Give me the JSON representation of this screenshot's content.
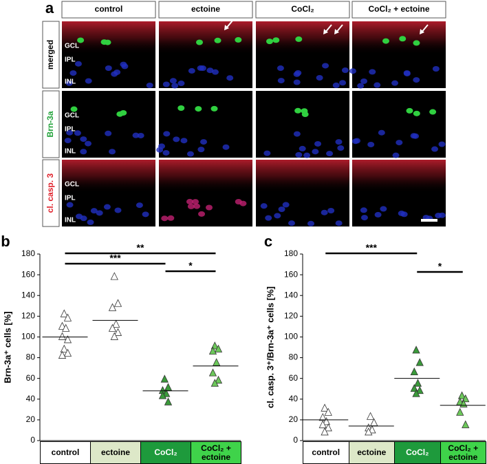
{
  "panel_a": {
    "label": "a",
    "columns": [
      "control",
      "ectoine",
      "CoCl₂",
      "CoCl₂ + ectoine"
    ],
    "rows": [
      {
        "label": "merged",
        "color": "#000000"
      },
      {
        "label": "Brn-3a",
        "color": "#22a33a"
      },
      {
        "label": "cl. casp. 3",
        "color": "#e0202a"
      }
    ],
    "layers": [
      "GCL",
      "IPL",
      "INL"
    ]
  },
  "chart_data": [
    {
      "type": "dot",
      "panel_label": "b",
      "y_label": "Brn-3a⁺ cells [%]",
      "categories": [
        "control",
        "ectoine",
        "CoCl₂",
        "CoCl₂ + ectoine"
      ],
      "values": [
        [
          122,
          118,
          110,
          108,
          100,
          97,
          88,
          84,
          82
        ],
        [
          158,
          132,
          128,
          112,
          108,
          104,
          100
        ],
        [
          59,
          51,
          48,
          45,
          43,
          37
        ],
        [
          91,
          88,
          86,
          75,
          65,
          58,
          55
        ]
      ],
      "means": [
        100,
        116,
        48,
        72
      ],
      "marker_colors": [
        "#ffffff",
        "#ffffff",
        "#3a9a3a",
        "#6cc85a"
      ],
      "box_colors": [
        "#ffffff",
        "#dde8c8",
        "#1e9a3c",
        "#3fd34a"
      ],
      "box_text_colors": [
        "#000000",
        "#000000",
        "#ffffff",
        "#000000"
      ],
      "ylim": [
        0,
        180
      ],
      "yticks": [
        0,
        20,
        40,
        60,
        80,
        100,
        120,
        140,
        160,
        180
      ],
      "significance": [
        {
          "text": "**",
          "from": "control",
          "to": "CoCl₂ + ectoine"
        },
        {
          "text": "***",
          "from": "control",
          "to": "CoCl₂"
        },
        {
          "text": "*",
          "from": "CoCl₂",
          "to": "CoCl₂ + ectoine"
        }
      ]
    },
    {
      "type": "dot",
      "panel_label": "c",
      "y_label": "cl. casp. 3⁺/Brn-3a⁺ cells [%]",
      "categories": [
        "control",
        "ectoine",
        "CoCl₂",
        "CoCl₂ + ectoine"
      ],
      "values": [
        [
          31,
          27,
          22,
          18,
          15,
          12,
          8
        ],
        [
          23,
          17,
          12,
          10,
          8
        ],
        [
          87,
          75,
          66,
          55,
          50,
          48,
          45
        ],
        [
          43,
          40,
          37,
          35,
          27,
          15
        ]
      ],
      "means": [
        20,
        14,
        60,
        34
      ],
      "marker_colors": [
        "#ffffff",
        "#ffffff",
        "#3a9a3a",
        "#6cc85a"
      ],
      "box_colors": [
        "#ffffff",
        "#dde8c8",
        "#1e9a3c",
        "#3fd34a"
      ],
      "box_text_colors": [
        "#000000",
        "#000000",
        "#ffffff",
        "#000000"
      ],
      "ylim": [
        0,
        180
      ],
      "yticks": [
        0,
        20,
        40,
        60,
        80,
        100,
        120,
        140,
        160,
        180
      ],
      "significance": [
        {
          "text": "***",
          "from": "control",
          "to": "CoCl₂"
        },
        {
          "text": "*",
          "from": "CoCl₂",
          "to": "CoCl₂ + ectoine"
        }
      ]
    }
  ]
}
